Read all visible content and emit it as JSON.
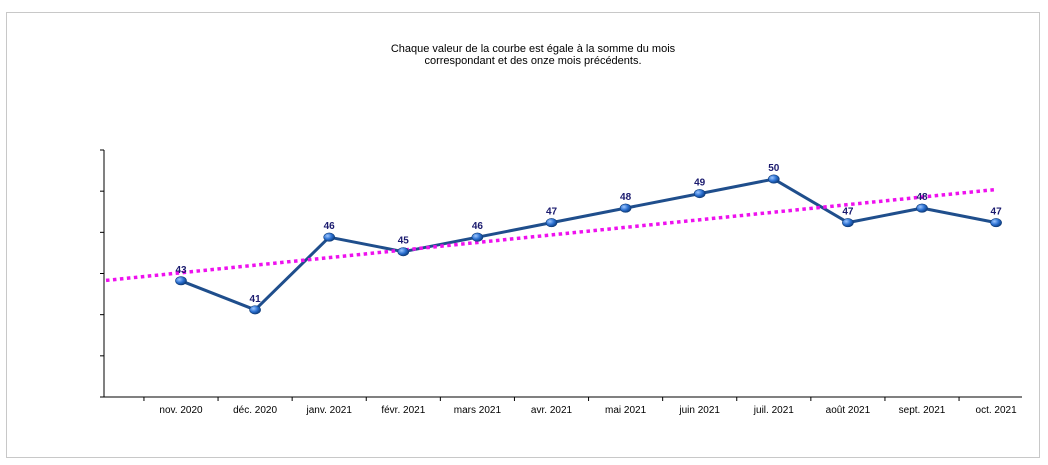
{
  "chart_data": {
    "type": "line",
    "title": "Chaque valeur de la courbe est égale à la somme du mois\ncorrespondant et des onze mois précédents.",
    "categories": [
      "nov. 2020",
      "déc. 2020",
      "janv. 2021",
      "févr. 2021",
      "mars 2021",
      "avr. 2021",
      "mai 2021",
      "juin 2021",
      "juil. 2021",
      "août 2021",
      "sept. 2021",
      "oct. 2021"
    ],
    "series": [
      {
        "values": [
          43,
          41,
          46,
          45,
          46,
          47,
          48,
          49,
          50,
          47,
          48,
          47
        ],
        "color": "#1f4e8c",
        "style": "solid",
        "markers": true,
        "data_labels": true
      }
    ],
    "trendline": {
      "type": "linear",
      "color": "#ee11ee",
      "style": "dotted"
    },
    "ylim": [
      35,
      52
    ],
    "y_tick_labels_shown": false,
    "grid": false,
    "legend": "none"
  }
}
